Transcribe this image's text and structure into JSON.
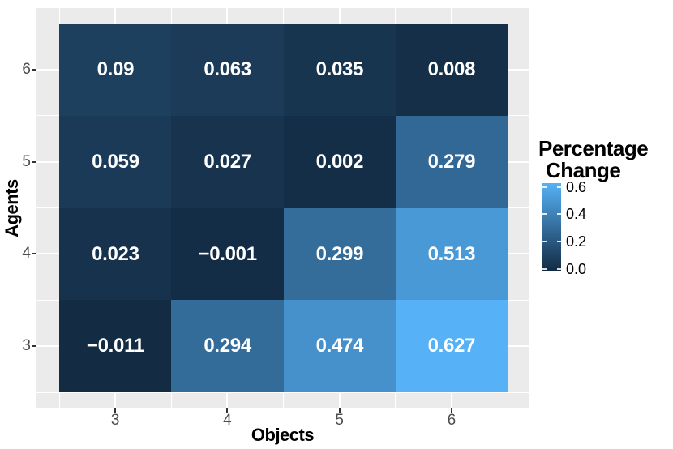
{
  "chart_data": {
    "type": "heatmap",
    "xlabel": "Objects",
    "ylabel": "Agents",
    "x_categories": [
      "3",
      "4",
      "5",
      "6"
    ],
    "rows": [
      {
        "agent": "6",
        "values": [
          0.09,
          0.063,
          0.035,
          0.008
        ]
      },
      {
        "agent": "5",
        "values": [
          0.059,
          0.027,
          0.002,
          0.279
        ]
      },
      {
        "agent": "4",
        "values": [
          0.023,
          -0.001,
          0.299,
          0.513
        ]
      },
      {
        "agent": "3",
        "values": [
          -0.011,
          0.294,
          0.474,
          0.627
        ]
      }
    ],
    "fill_domain": [
      -0.011,
      0.627
    ],
    "legend": {
      "title_line1": "Percentage",
      "title_line2": "Change",
      "tick_labels": [
        "0.6",
        "0.4",
        "0.2",
        "0.0"
      ],
      "tick_values": [
        0.6,
        0.4,
        0.2,
        0.0
      ]
    },
    "colors": {
      "low": "#132B43",
      "high": "#56B1F7",
      "panel_bg": "#EBEBEB",
      "grid": "#FFFFFF",
      "axis_text": "#4D4D4D",
      "tick_mark": "#333333",
      "cell_text": "#FFFFFF",
      "title_text": "#000000"
    },
    "layout": {
      "grid": "on",
      "legend_position": "right"
    }
  }
}
